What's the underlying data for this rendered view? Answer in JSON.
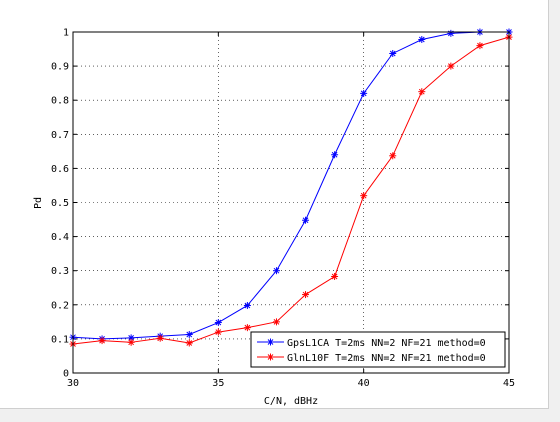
{
  "chart_data": {
    "type": "line",
    "title": "",
    "xlabel": "C/N, dBHz",
    "ylabel": "Pd",
    "xlim": [
      30,
      45
    ],
    "ylim": [
      0,
      1
    ],
    "xticks": [
      30,
      35,
      40,
      45
    ],
    "yticks": [
      0,
      0.1,
      0.2,
      0.3,
      0.4,
      0.5,
      0.6,
      0.7,
      0.8,
      0.9,
      1
    ],
    "xtick_labels": [
      "30",
      "35",
      "40",
      "45"
    ],
    "ytick_labels": [
      "0",
      "0.1",
      "0.2",
      "0.3",
      "0.4",
      "0.5",
      "0.6",
      "0.7",
      "0.8",
      "0.9",
      "1"
    ],
    "grid": true,
    "grid_style": "dotted",
    "legend_position": "bottom-right",
    "series": [
      {
        "name": "GpsL1CA T=2ms NN=2 NF=21 method=0",
        "color": "#0000ff",
        "marker": "asterisk",
        "x": [
          30,
          31,
          32,
          33,
          34,
          35,
          36,
          37,
          38,
          39,
          40,
          41,
          42,
          43,
          44,
          45
        ],
        "y": [
          0.105,
          0.1,
          0.103,
          0.108,
          0.113,
          0.148,
          0.198,
          0.3,
          0.448,
          0.64,
          0.82,
          0.937,
          0.978,
          0.996,
          1.0,
          1.0
        ]
      },
      {
        "name": "GlnL10F T=2ms NN=2 NF=21 method=0",
        "color": "#ff0000",
        "marker": "asterisk",
        "x": [
          30,
          31,
          32,
          33,
          34,
          35,
          36,
          37,
          38,
          39,
          40,
          41,
          42,
          43,
          44,
          45
        ],
        "y": [
          0.085,
          0.095,
          0.09,
          0.102,
          0.088,
          0.12,
          0.133,
          0.15,
          0.23,
          0.283,
          0.52,
          0.637,
          0.825,
          0.9,
          0.96,
          0.985
        ]
      }
    ]
  }
}
